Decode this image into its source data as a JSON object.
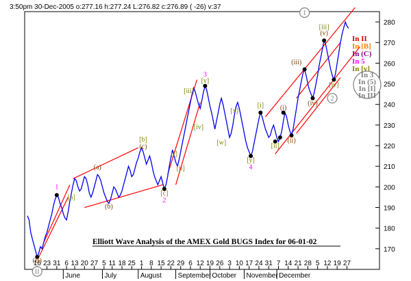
{
  "header": {
    "text": "3:50pm 30-Dec-2005  o:277.16 h:277.24 L:276.82 c:276.89 ( -26) v:37"
  },
  "title": "Elliott Wave Analysis of the AMEX Gold BUGS Index for 06-01-02",
  "colors": {
    "price": "#0000ee",
    "channel": "#ff0000",
    "pink": "#ff00ff",
    "olive": "#808000",
    "brown": "#804000",
    "gray": "#808080",
    "darkred": "#cc0000",
    "orange": "#ff8000",
    "purple": "#800080"
  },
  "chart_data": {
    "type": "line",
    "ylim": [
      160,
      285
    ],
    "y_ticks": [
      170,
      180,
      190,
      200,
      210,
      220,
      230,
      240,
      250,
      260,
      270,
      280
    ],
    "x_ticks": [
      "16",
      "23",
      "31",
      "6",
      "13",
      "20",
      "27",
      "5",
      "11",
      "18",
      "25",
      "1",
      "8",
      "15",
      "22",
      "29",
      "6",
      "12",
      "19",
      "26",
      "3",
      "10",
      "17",
      "24",
      "31",
      "7",
      "14",
      "21",
      "28",
      "5",
      "12",
      "19",
      "27"
    ],
    "months": [
      "June",
      "July",
      "August",
      "September",
      "October",
      "November",
      "December"
    ],
    "series": [
      {
        "color": "#0000ee",
        "points": [
          [
            0,
            186
          ],
          [
            1,
            184
          ],
          [
            2,
            178
          ],
          [
            3,
            175
          ],
          [
            4,
            172
          ],
          [
            5,
            169
          ],
          [
            6,
            166
          ],
          [
            7,
            168
          ],
          [
            8,
            171
          ],
          [
            9,
            170
          ],
          [
            10,
            173
          ],
          [
            11,
            176
          ],
          [
            12,
            178
          ],
          [
            13,
            181
          ],
          [
            14,
            184
          ],
          [
            15,
            187
          ],
          [
            16,
            191
          ],
          [
            17,
            194
          ],
          [
            18,
            196
          ],
          [
            19,
            195
          ],
          [
            20,
            192
          ],
          [
            21,
            190
          ],
          [
            22,
            187
          ],
          [
            23,
            185
          ],
          [
            24,
            184
          ],
          [
            25,
            188
          ],
          [
            26,
            193
          ],
          [
            27,
            197
          ],
          [
            28,
            201
          ],
          [
            29,
            204
          ],
          [
            30,
            203
          ],
          [
            31,
            200
          ],
          [
            32,
            198
          ],
          [
            33,
            199
          ],
          [
            34,
            202
          ],
          [
            35,
            205
          ],
          [
            36,
            204
          ],
          [
            37,
            201
          ],
          [
            38,
            197
          ],
          [
            39,
            195
          ],
          [
            40,
            197
          ],
          [
            41,
            200
          ],
          [
            42,
            203
          ],
          [
            43,
            206
          ],
          [
            44,
            205
          ],
          [
            45,
            203
          ],
          [
            46,
            200
          ],
          [
            47,
            197
          ],
          [
            48,
            195
          ],
          [
            49,
            193
          ],
          [
            50,
            192
          ],
          [
            51,
            194
          ],
          [
            52,
            197
          ],
          [
            53,
            200
          ],
          [
            54,
            199
          ],
          [
            55,
            197
          ],
          [
            56,
            195
          ],
          [
            57,
            196
          ],
          [
            58,
            198
          ],
          [
            59,
            201
          ],
          [
            60,
            204
          ],
          [
            61,
            207
          ],
          [
            62,
            210
          ],
          [
            63,
            208
          ],
          [
            64,
            205
          ],
          [
            65,
            206
          ],
          [
            66,
            209
          ],
          [
            67,
            212
          ],
          [
            68,
            214
          ],
          [
            69,
            217
          ],
          [
            70,
            219
          ],
          [
            71,
            217
          ],
          [
            72,
            214
          ],
          [
            73,
            211
          ],
          [
            74,
            213
          ],
          [
            75,
            215
          ],
          [
            76,
            212
          ],
          [
            77,
            208
          ],
          [
            78,
            205
          ],
          [
            79,
            203
          ],
          [
            80,
            201
          ],
          [
            81,
            203
          ],
          [
            82,
            205
          ],
          [
            83,
            202
          ],
          [
            84,
            199
          ],
          [
            85,
            201
          ],
          [
            86,
            205
          ],
          [
            87,
            210
          ],
          [
            88,
            214
          ],
          [
            89,
            218
          ],
          [
            90,
            215
          ],
          [
            91,
            212
          ],
          [
            92,
            210
          ],
          [
            93,
            213
          ],
          [
            94,
            217
          ],
          [
            95,
            221
          ],
          [
            96,
            225
          ],
          [
            97,
            229
          ],
          [
            98,
            233
          ],
          [
            99,
            237
          ],
          [
            100,
            241
          ],
          [
            101,
            245
          ],
          [
            102,
            248
          ],
          [
            103,
            246
          ],
          [
            104,
            243
          ],
          [
            105,
            240
          ],
          [
            106,
            238
          ],
          [
            107,
            242
          ],
          [
            108,
            246
          ],
          [
            109,
            249
          ],
          [
            110,
            247
          ],
          [
            111,
            243
          ],
          [
            112,
            239
          ],
          [
            113,
            236
          ],
          [
            114,
            232
          ],
          [
            115,
            228
          ],
          [
            116,
            232
          ],
          [
            117,
            236
          ],
          [
            118,
            240
          ],
          [
            119,
            243
          ],
          [
            120,
            240
          ],
          [
            121,
            236
          ],
          [
            122,
            232
          ],
          [
            123,
            228
          ],
          [
            124,
            224
          ],
          [
            125,
            226
          ],
          [
            126,
            230
          ],
          [
            127,
            235
          ],
          [
            128,
            239
          ],
          [
            129,
            241
          ],
          [
            130,
            238
          ],
          [
            131,
            234
          ],
          [
            132,
            230
          ],
          [
            133,
            226
          ],
          [
            134,
            222
          ],
          [
            135,
            219
          ],
          [
            136,
            217
          ],
          [
            137,
            215
          ],
          [
            138,
            217
          ],
          [
            139,
            221
          ],
          [
            140,
            225
          ],
          [
            141,
            229
          ],
          [
            142,
            233
          ],
          [
            143,
            236
          ],
          [
            144,
            234
          ],
          [
            145,
            231
          ],
          [
            146,
            228
          ],
          [
            147,
            226
          ],
          [
            148,
            224
          ],
          [
            149,
            225
          ],
          [
            150,
            228
          ],
          [
            151,
            230
          ],
          [
            152,
            227
          ],
          [
            153,
            224
          ],
          [
            154,
            222
          ],
          [
            155,
            224
          ],
          [
            156,
            227
          ],
          [
            157,
            232
          ],
          [
            158,
            236
          ],
          [
            159,
            234
          ],
          [
            160,
            230
          ],
          [
            161,
            227
          ],
          [
            162,
            225
          ],
          [
            163,
            228
          ],
          [
            164,
            233
          ],
          [
            165,
            238
          ],
          [
            166,
            243
          ],
          [
            167,
            247
          ],
          [
            168,
            251
          ],
          [
            169,
            255
          ],
          [
            170,
            257
          ],
          [
            171,
            254
          ],
          [
            172,
            250
          ],
          [
            173,
            247
          ],
          [
            174,
            245
          ],
          [
            175,
            243
          ],
          [
            176,
            246
          ],
          [
            177,
            250
          ],
          [
            178,
            254
          ],
          [
            179,
            259
          ],
          [
            180,
            263
          ],
          [
            181,
            267
          ],
          [
            182,
            271
          ],
          [
            183,
            269
          ],
          [
            184,
            265
          ],
          [
            185,
            261
          ],
          [
            186,
            257
          ],
          [
            187,
            254
          ],
          [
            188,
            252
          ],
          [
            189,
            255
          ],
          [
            190,
            260
          ],
          [
            191,
            265
          ],
          [
            192,
            270
          ],
          [
            193,
            274
          ],
          [
            194,
            277
          ],
          [
            195,
            280
          ],
          [
            196,
            278
          ],
          [
            197,
            276.89
          ]
        ]
      }
    ],
    "channels": [
      {
        "color": "#ff0000",
        "from": [
          7,
          166
        ],
        "to": [
          25,
          195
        ]
      },
      {
        "color": "#ff0000",
        "from": [
          10,
          173
        ],
        "to": [
          26,
          201
        ]
      },
      {
        "color": "#ff0000",
        "from": [
          28,
          204
        ],
        "to": [
          68,
          219
        ]
      },
      {
        "color": "#ff0000",
        "from": [
          35,
          190
        ],
        "to": [
          83,
          201
        ]
      },
      {
        "color": "#ff0000",
        "from": [
          86,
          206
        ],
        "to": [
          104,
          252
        ]
      },
      {
        "color": "#ff0000",
        "from": [
          91,
          201
        ],
        "to": [
          106,
          241
        ]
      },
      {
        "color": "#ff0000",
        "from": [
          146,
          234
        ],
        "to": [
          201,
          287
        ]
      },
      {
        "color": "#ff0000",
        "from": [
          152,
          216
        ],
        "to": [
          204,
          268
        ]
      },
      {
        "color": "#ff0000",
        "from": [
          165,
          243
        ],
        "to": [
          192,
          270
        ]
      },
      {
        "color": "#ff0000",
        "from": [
          165,
          226
        ],
        "to": [
          192,
          253
        ]
      }
    ],
    "pivots": [
      [
        6,
        166
      ],
      [
        18,
        196
      ],
      [
        84,
        199
      ],
      [
        109,
        249
      ],
      [
        137,
        215
      ],
      [
        143,
        236
      ],
      [
        152,
        222
      ],
      [
        155,
        224
      ],
      [
        157,
        236
      ],
      [
        162,
        225
      ],
      [
        170,
        257
      ],
      [
        175,
        243
      ],
      [
        182,
        271
      ],
      [
        188,
        252
      ]
    ],
    "annotations": [
      {
        "text": "(B)",
        "x": 6,
        "y": 163.3,
        "color": "#804000"
      },
      {
        "text": "1",
        "x": 18,
        "y": 199,
        "color": "#ff00ff"
      },
      {
        "text": "[a]",
        "x": 27,
        "y": 194,
        "color": "#808000"
      },
      {
        "text": "(a)",
        "x": 43,
        "y": 208.5,
        "color": "#804000"
      },
      {
        "text": "(b)",
        "x": 50,
        "y": 189.5,
        "color": "#804000"
      },
      {
        "text": "[b]",
        "x": 71,
        "y": 222,
        "color": "#808000"
      },
      {
        "text": "(c)",
        "x": 71,
        "y": 218.5,
        "color": "#804000"
      },
      {
        "text": "[c]",
        "x": 84,
        "y": 196,
        "color": "#808000"
      },
      {
        "text": "2",
        "x": 84,
        "y": 192.5,
        "color": "#ff00ff"
      },
      {
        "text": "[i]",
        "x": 90,
        "y": 215,
        "color": "#808000"
      },
      {
        "text": "[ii]",
        "x": 94,
        "y": 208,
        "color": "#808000"
      },
      {
        "text": "[iii]",
        "x": 99,
        "y": 245.5,
        "color": "#808000"
      },
      {
        "text": "[iv]",
        "x": 105,
        "y": 228,
        "color": "#808000"
      },
      {
        "text": "3",
        "x": 109,
        "y": 253.5,
        "color": "#ff00ff"
      },
      {
        "text": "[v]",
        "x": 109,
        "y": 250.5,
        "color": "#808000"
      },
      {
        "text": "[w]",
        "x": 119,
        "y": 220.5,
        "color": "#808000"
      },
      {
        "text": "[x]",
        "x": 127,
        "y": 236,
        "color": "#808000"
      },
      {
        "text": "[y]",
        "x": 137,
        "y": 212,
        "color": "#808000"
      },
      {
        "text": "4",
        "x": 137,
        "y": 208.5,
        "color": "#ff00ff"
      },
      {
        "text": "[i]",
        "x": 143,
        "y": 238.5,
        "color": "#808000"
      },
      {
        "text": "(i)",
        "x": 157,
        "y": 237.5,
        "color": "#804000"
      },
      {
        "text": "[ii]",
        "x": 152,
        "y": 219,
        "color": "#808000"
      },
      {
        "text": "(ii)",
        "x": 162,
        "y": 221.5,
        "color": "#804000"
      },
      {
        "text": "(iii)",
        "x": 165,
        "y": 259.5,
        "color": "#804000"
      },
      {
        "text": "(iv)",
        "x": 175,
        "y": 239.5,
        "color": "#804000"
      },
      {
        "text": "[iii]",
        "x": 182,
        "y": 276.5,
        "color": "#808000"
      },
      {
        "text": "(v)",
        "x": 182,
        "y": 273.5,
        "color": "#804000"
      },
      {
        "text": "[iv]",
        "x": 188,
        "y": 248.5,
        "color": "#808000"
      }
    ],
    "circled": [
      {
        "text": "1",
        "x": 170,
        "y": 284.5
      },
      {
        "text": "2",
        "x": 187,
        "y": 243
      },
      {
        "text": "II",
        "x": 6,
        "y": 159
      }
    ],
    "legend": [
      {
        "text": "In II",
        "color": "#cc0000"
      },
      {
        "text": "In [B]",
        "color": "#ff8000"
      },
      {
        "text": "In (C)",
        "color": "#800080"
      },
      {
        "text": "In 5",
        "color": "#ff00ff"
      },
      {
        "text": "In [v]",
        "color": "#808000"
      }
    ],
    "legend2": [
      "In 3",
      "In (5)",
      "In [I]",
      "In III"
    ]
  }
}
